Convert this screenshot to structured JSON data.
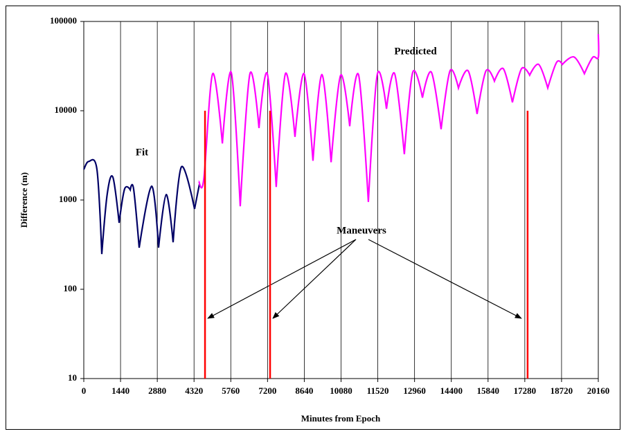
{
  "chart_data": {
    "type": "line",
    "xlabel": "Minutes from Epoch",
    "ylabel": "Difference (m)",
    "xlim": [
      0,
      20160
    ],
    "xticks": [
      0,
      1440,
      2880,
      4320,
      5760,
      7200,
      8640,
      10080,
      11520,
      12960,
      14400,
      15840,
      17280,
      18720,
      20160
    ],
    "ylim": [
      10,
      100000
    ],
    "yticks": [
      10,
      100,
      1000,
      10000,
      100000
    ],
    "log_y": true,
    "x_grid": true,
    "series": [
      {
        "name": "Fit",
        "color": "#000066",
        "x": [
          0,
          190,
          515,
          705,
          920,
          1140,
          1385,
          1600,
          1820,
          1950,
          2170,
          2660,
          2930,
          3230,
          3500,
          3825,
          4340,
          4530
        ],
        "values": [
          2200,
          2700,
          2200,
          248,
          1175,
          1800,
          555,
          1330,
          1300,
          1340,
          292,
          1430,
          293,
          1150,
          336,
          2350,
          795,
          1500
        ]
      },
      {
        "name": "Predicted",
        "color": "#ff00ff",
        "x": [
          4500,
          4700,
          5050,
          5430,
          5780,
          6130,
          6510,
          6865,
          7190,
          7540,
          7900,
          8275,
          8630,
          8980,
          9330,
          9690,
          10065,
          10420,
          10770,
          11150,
          11500,
          11860,
          12180,
          12560,
          12890,
          13270,
          13620,
          14000,
          14350,
          14680,
          15060,
          15410,
          15760,
          16090,
          16440,
          16795,
          17150,
          17470,
          17825,
          18180,
          18530,
          18750,
          19210,
          19615,
          19940,
          20160,
          20160
        ],
        "values": [
          1620,
          1700,
          26000,
          4300,
          26700,
          850,
          26000,
          6400,
          26000,
          1400,
          26000,
          5100,
          26000,
          2750,
          25500,
          2650,
          25000,
          6700,
          25000,
          950,
          25500,
          10500,
          26000,
          3260,
          27000,
          14000,
          27000,
          6200,
          28000,
          18000,
          28000,
          9200,
          28000,
          21500,
          29500,
          12400,
          29500,
          25000,
          33000,
          18000,
          35000,
          33000,
          40000,
          26000,
          39600,
          39600,
          72000
        ]
      }
    ],
    "maneuvers": {
      "label": "Maneuvers",
      "color": "#ff0000",
      "x": [
        4750,
        7300,
        17390
      ],
      "values": [
        10000,
        10000,
        10000
      ]
    }
  }
}
